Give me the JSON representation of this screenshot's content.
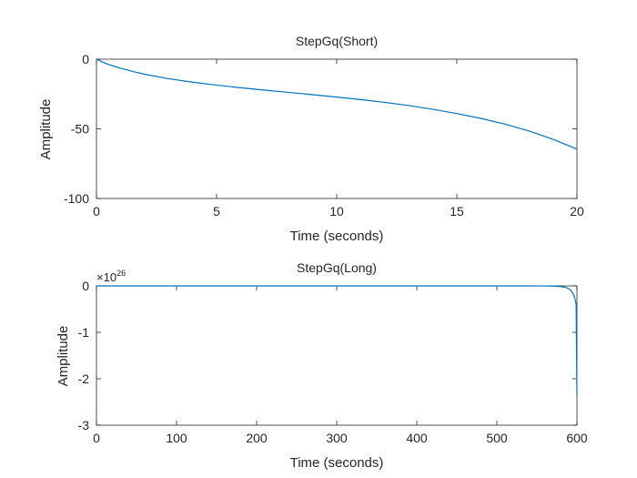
{
  "chart_data": [
    {
      "type": "line",
      "title": "StepGq(Short)",
      "xlabel": "Time (seconds)",
      "ylabel": "Amplitude",
      "xlim": [
        0,
        20
      ],
      "ylim": [
        -100,
        0
      ],
      "xticks": [
        0,
        5,
        10,
        15,
        20
      ],
      "yticks": [
        0,
        -50,
        -100
      ],
      "xticklabels": [
        "0",
        "5",
        "10",
        "15",
        "20"
      ],
      "yticklabels": [
        "0",
        "-50",
        "-100"
      ],
      "grid": false,
      "series": [
        {
          "color": "#0072bd",
          "x": [
            0,
            0.25,
            0.5,
            1,
            1.5,
            2,
            3,
            4,
            5,
            6,
            7,
            8,
            9,
            10,
            11,
            12,
            13,
            14,
            15,
            16,
            17,
            18,
            19,
            20
          ],
          "y": [
            0,
            -2,
            -3.8,
            -6.5,
            -8.8,
            -10.8,
            -14,
            -16.5,
            -18.6,
            -20.5,
            -22.2,
            -23.8,
            -25.5,
            -27.2,
            -29,
            -31,
            -33.3,
            -36,
            -39,
            -42.5,
            -46.6,
            -51.5,
            -57.5,
            -64.5
          ]
        }
      ]
    },
    {
      "type": "line",
      "title": "StepGq(Long)",
      "xlabel": "Time (seconds)",
      "ylabel": "Amplitude",
      "xlim": [
        0,
        600
      ],
      "ylim": [
        -3,
        0
      ],
      "y_exponent_base": "×10",
      "y_exponent_power": "26",
      "xticks": [
        0,
        100,
        200,
        300,
        400,
        500,
        600
      ],
      "yticks": [
        0,
        -1,
        -2,
        -3
      ],
      "xticklabels": [
        "0",
        "100",
        "200",
        "300",
        "400",
        "500",
        "600"
      ],
      "yticklabels": [
        "0",
        "-1",
        "-2",
        "-3"
      ],
      "grid": false,
      "series": [
        {
          "color": "#0072bd",
          "x": [
            0,
            100,
            200,
            300,
            400,
            500,
            530,
            545,
            555,
            565,
            572,
            578,
            584,
            588,
            592,
            595,
            597,
            599,
            600
          ],
          "y": [
            0,
            0,
            0,
            0,
            0,
            0,
            -0.0002,
            -0.0006,
            -0.0013,
            -0.003,
            -0.006,
            -0.012,
            -0.025,
            -0.045,
            -0.09,
            -0.16,
            -0.24,
            -0.4,
            -2.35
          ]
        }
      ]
    }
  ]
}
